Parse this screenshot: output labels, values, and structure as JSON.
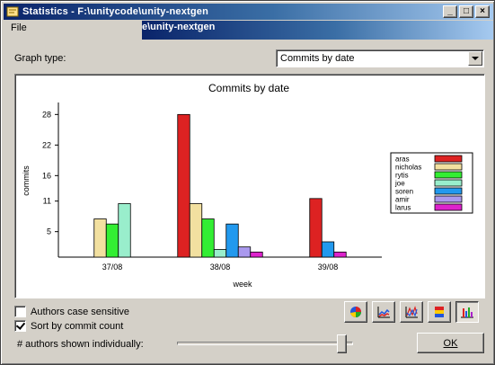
{
  "window": {
    "title": "Statistics - F:\\unitycode\\unity-nextgen",
    "ghost_title": "e\\unity-nextgen",
    "minimize_glyph": "_",
    "maximize_glyph": "□",
    "close_glyph": "×"
  },
  "menu": {
    "file": "File"
  },
  "graph_type": {
    "label": "Graph type:",
    "selected": "Commits by date"
  },
  "chart_data": {
    "type": "bar",
    "title": "Commits by date",
    "xlabel": "week",
    "ylabel": "commits",
    "categories": [
      "37/08",
      "38/08",
      "39/08"
    ],
    "yticks": [
      5,
      11,
      16,
      22,
      28
    ],
    "ylim": [
      0,
      30
    ],
    "legend_position": "right",
    "series": [
      {
        "name": "aras",
        "color": "#dd2222",
        "values": [
          0,
          28,
          11.5
        ]
      },
      {
        "name": "nicholas",
        "color": "#f2e0a0",
        "values": [
          7.5,
          10.5,
          0
        ]
      },
      {
        "name": "rytis",
        "color": "#33ee33",
        "values": [
          6.5,
          7.5,
          0
        ]
      },
      {
        "name": "joe",
        "color": "#99eecc",
        "values": [
          10.5,
          1.5,
          0
        ]
      },
      {
        "name": "soren",
        "color": "#2299ee",
        "values": [
          0,
          6.5,
          3
        ]
      },
      {
        "name": "amir",
        "color": "#aa99ee",
        "values": [
          0,
          2,
          0
        ]
      },
      {
        "name": "larus",
        "color": "#dd22cc",
        "values": [
          0,
          1,
          1
        ]
      }
    ]
  },
  "options": {
    "authors_case_sensitive": {
      "label": "Authors case sensitive",
      "checked": false
    },
    "sort_by_commit_count": {
      "label": "Sort by commit count",
      "checked": true
    },
    "authors_shown_label": "# authors shown individually:",
    "authors_shown_level": 0.96
  },
  "graph_buttons": [
    {
      "name": "pie-chart-button",
      "icon": "pie-chart-icon",
      "pressed": false
    },
    {
      "name": "area-chart-button",
      "icon": "area-chart-icon",
      "pressed": false
    },
    {
      "name": "line-chart-button",
      "icon": "line-chart-icon",
      "pressed": false
    },
    {
      "name": "stacked-bar-button",
      "icon": "stacked-bar-icon",
      "pressed": false
    },
    {
      "name": "bar-chart-button",
      "icon": "bar-chart-icon",
      "pressed": true
    }
  ],
  "ok_button": "OK"
}
